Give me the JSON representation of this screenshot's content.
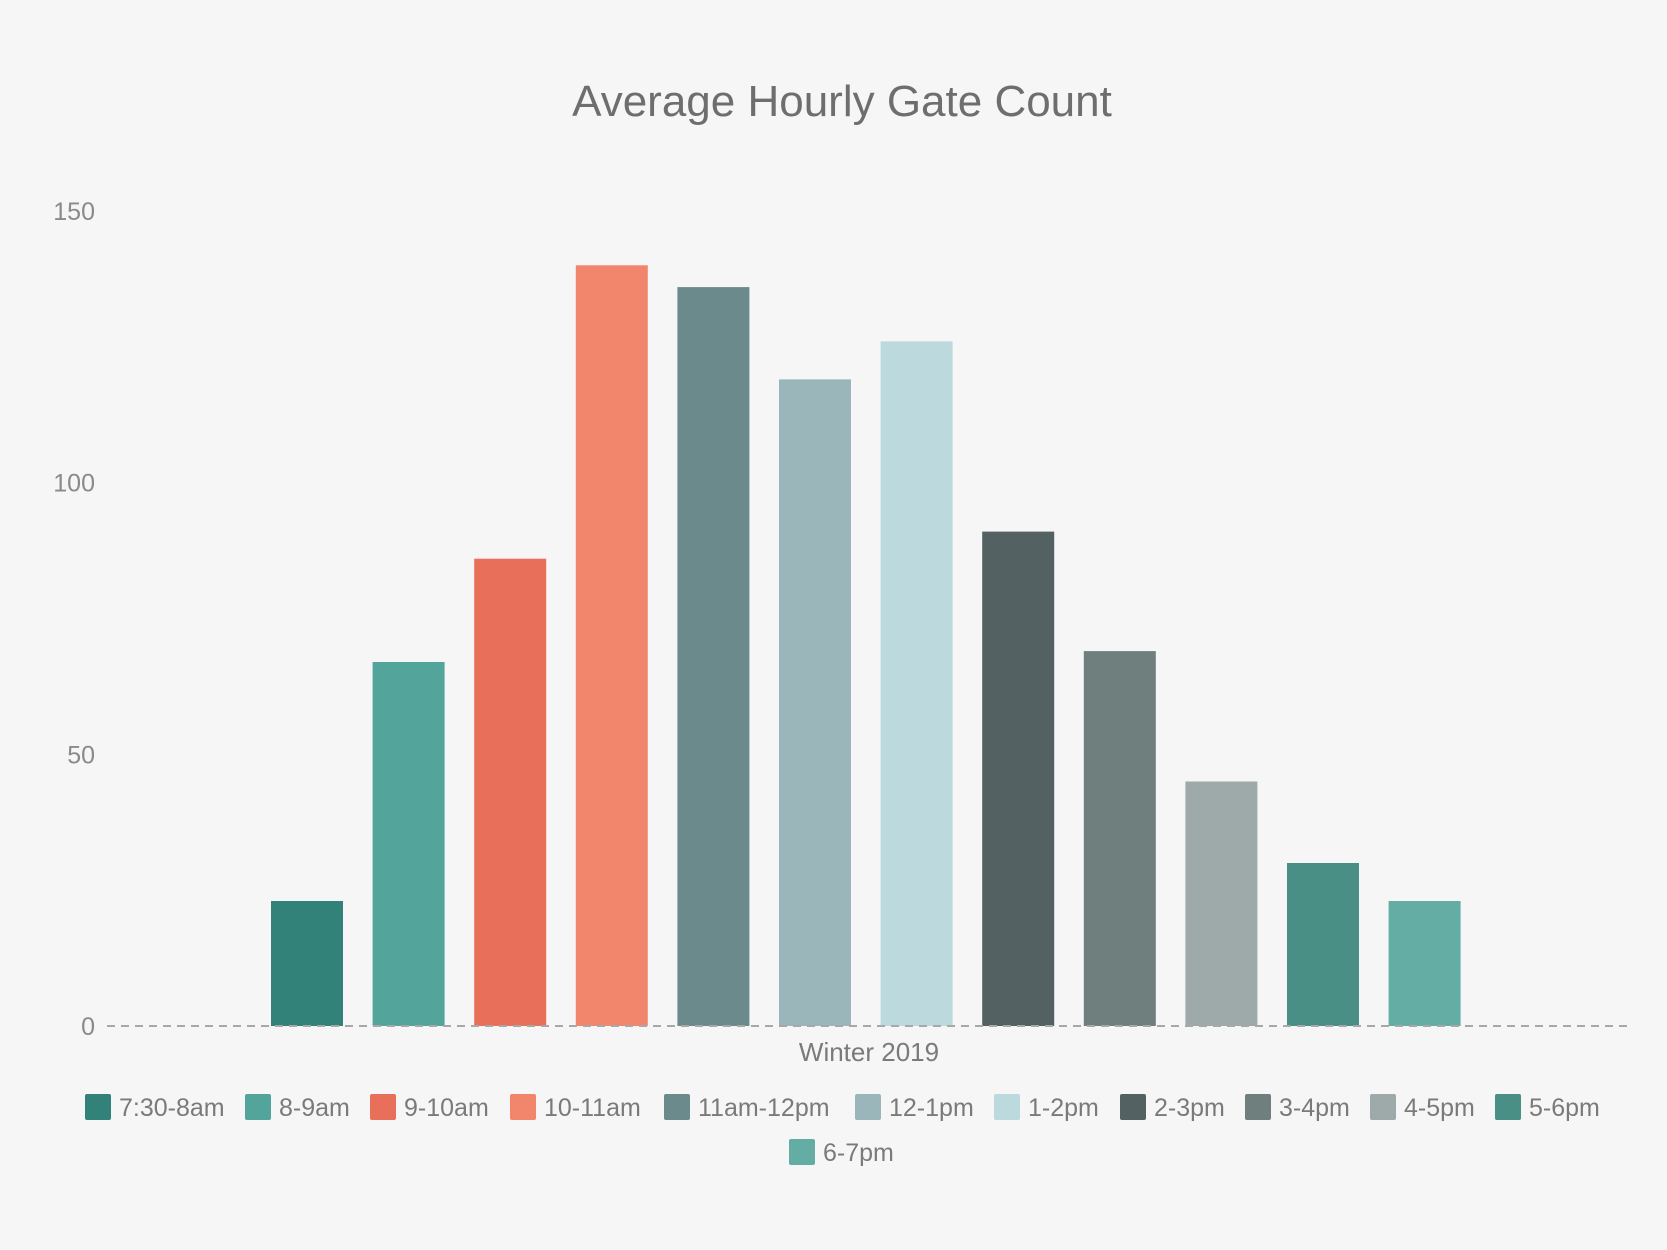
{
  "chart_data": {
    "type": "bar",
    "title": "Average Hourly Gate Count",
    "categories": [
      "Winter 2019"
    ],
    "series": [
      {
        "name": "7:30-8am",
        "values": [
          23
        ],
        "color": "#32827a"
      },
      {
        "name": "8-9am",
        "values": [
          67
        ],
        "color": "#53a59c"
      },
      {
        "name": "9-10am",
        "values": [
          86
        ],
        "color": "#e8705b"
      },
      {
        "name": "10-11am",
        "values": [
          140
        ],
        "color": "#f2866c"
      },
      {
        "name": "11am-12pm",
        "values": [
          136
        ],
        "color": "#6a8a8b"
      },
      {
        "name": "12-1pm",
        "values": [
          119
        ],
        "color": "#9ab6ba"
      },
      {
        "name": "1-2pm",
        "values": [
          126
        ],
        "color": "#bcd9dd"
      },
      {
        "name": "2-3pm",
        "values": [
          91
        ],
        "color": "#546163"
      },
      {
        "name": "3-4pm",
        "values": [
          69
        ],
        "color": "#6f7f7e"
      },
      {
        "name": "4-5pm",
        "values": [
          45
        ],
        "color": "#9eaaaa"
      },
      {
        "name": "5-6pm",
        "values": [
          30
        ],
        "color": "#4a8f86"
      },
      {
        "name": "6-7pm",
        "values": [
          23
        ],
        "color": "#64ada5"
      }
    ],
    "xlabel": "",
    "ylabel": "",
    "ylim": [
      0,
      150
    ],
    "yticks": [
      "0",
      "50",
      "100",
      "150"
    ],
    "grid": false,
    "legend_position": "bottom"
  }
}
